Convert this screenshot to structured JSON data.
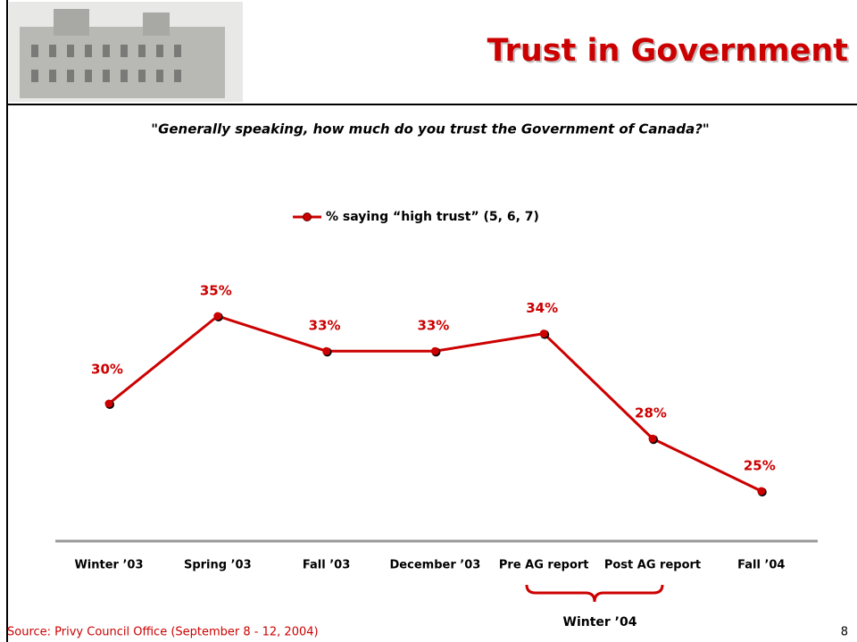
{
  "chart_data": {
    "type": "line",
    "title": "Trust in Government",
    "subtitle": "\"Generally speaking, how much do you trust the Government of Canada?\"",
    "categories": [
      "Winter ’03",
      "Spring ’03",
      "Fall ’03",
      "December ’03",
      "Pre AG report",
      "Post AG report",
      "Fall ’04"
    ],
    "series": [
      {
        "name": "% saying “high trust” (5, 6, 7)",
        "color": "#cc0000",
        "values": [
          30,
          35,
          33,
          33,
          34,
          28,
          25
        ],
        "value_labels": [
          "30%",
          "35%",
          "33%",
          "33%",
          "34%",
          "28%",
          "25%"
        ]
      }
    ],
    "annotation": "Winter ’04",
    "source": "Source: Privy Council Office (September 8 - 12, 2004)",
    "page_number": 8
  }
}
